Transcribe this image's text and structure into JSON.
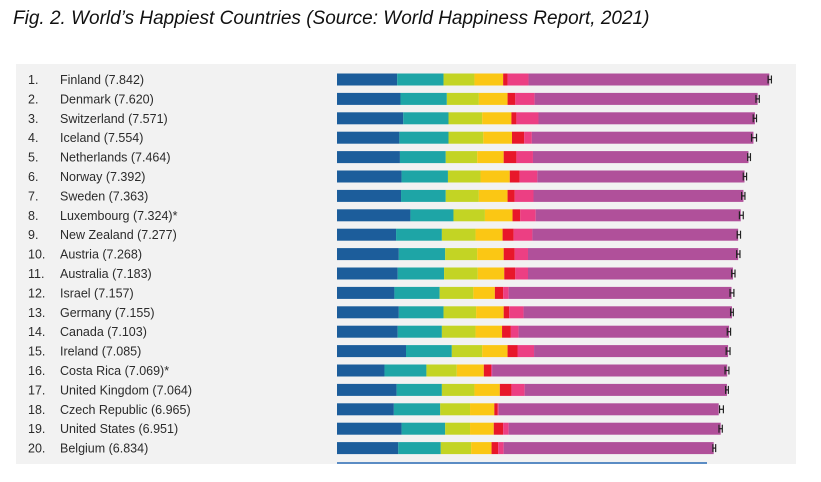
{
  "caption": "Fig. 2. World’s Happiest Countries (Source: World Happiness Report, 2021)",
  "chart_data": {
    "type": "bar",
    "stacked": true,
    "orientation": "horizontal",
    "title": "Fig. 2. World’s Happiest Countries (Source: World Happiness Report, 2021)",
    "source_note": "Source: World Happiness Report, 2021",
    "rows": [
      {
        "rank": "1.",
        "label": "Finland (7.842)",
        "score": 7.842,
        "ci_low": 7.81,
        "ci_high": 7.87
      },
      {
        "rank": "2.",
        "label": "Denmark (7.620)",
        "score": 7.62,
        "ci_low": 7.59,
        "ci_high": 7.65
      },
      {
        "rank": "3.",
        "label": "Switzerland (7.571)",
        "score": 7.571,
        "ci_low": 7.54,
        "ci_high": 7.6
      },
      {
        "rank": "4.",
        "label": "Iceland (7.554)",
        "score": 7.554,
        "ci_low": 7.51,
        "ci_high": 7.6
      },
      {
        "rank": "5.",
        "label": "Netherlands (7.464)",
        "score": 7.464,
        "ci_low": 7.44,
        "ci_high": 7.49
      },
      {
        "rank": "6.",
        "label": "Norway (7.392)",
        "score": 7.392,
        "ci_low": 7.36,
        "ci_high": 7.42
      },
      {
        "rank": "7.",
        "label": "Sweden (7.363)",
        "score": 7.363,
        "ci_low": 7.33,
        "ci_high": 7.39
      },
      {
        "rank": "8.",
        "label": "Luxembourg (7.324)*",
        "score": 7.324,
        "ci_low": 7.29,
        "ci_high": 7.36
      },
      {
        "rank": "9.",
        "label": "New Zealand (7.277)",
        "score": 7.277,
        "ci_low": 7.25,
        "ci_high": 7.31
      },
      {
        "rank": "10.",
        "label": "Austria (7.268)",
        "score": 7.268,
        "ci_low": 7.24,
        "ci_high": 7.3
      },
      {
        "rank": "11.",
        "label": "Australia (7.183)",
        "score": 7.183,
        "ci_low": 7.15,
        "ci_high": 7.21
      },
      {
        "rank": "12.",
        "label": "Israel (7.157)",
        "score": 7.157,
        "ci_low": 7.12,
        "ci_high": 7.19
      },
      {
        "rank": "13.",
        "label": "Germany (7.155)",
        "score": 7.155,
        "ci_low": 7.13,
        "ci_high": 7.18
      },
      {
        "rank": "14.",
        "label": "Canada (7.103)",
        "score": 7.103,
        "ci_low": 7.07,
        "ci_high": 7.13
      },
      {
        "rank": "15.",
        "label": "Ireland (7.085)",
        "score": 7.085,
        "ci_low": 7.05,
        "ci_high": 7.12
      },
      {
        "rank": "16.",
        "label": "Costa Rica (7.069)*",
        "score": 7.069,
        "ci_low": 7.03,
        "ci_high": 7.1
      },
      {
        "rank": "17.",
        "label": "United Kingdom (7.064)",
        "score": 7.064,
        "ci_low": 7.04,
        "ci_high": 7.09
      },
      {
        "rank": "18.",
        "label": "Czech Republic (6.965)",
        "score": 6.965,
        "ci_low": 6.93,
        "ci_high": 7.0
      },
      {
        "rank": "19.",
        "label": "United States (6.951)",
        "score": 6.951,
        "ci_low": 6.92,
        "ci_high": 6.98
      },
      {
        "rank": "20.",
        "label": "Belgium (6.834)",
        "score": 6.834,
        "ci_low": 6.81,
        "ci_high": 6.86
      }
    ],
    "segment_colors": [
      "#1c5d9b",
      "#1ea5a6",
      "#c3d424",
      "#fbc714",
      "#e8172a",
      "#ec3f83",
      "#b0509a"
    ],
    "segments": [
      [
        1.09,
        0.84,
        0.56,
        0.52,
        0.08,
        0.38,
        4.362
      ],
      [
        1.15,
        0.84,
        0.58,
        0.52,
        0.14,
        0.35,
        4.04
      ],
      [
        1.2,
        0.82,
        0.61,
        0.53,
        0.09,
        0.4,
        3.921
      ],
      [
        1.13,
        0.89,
        0.63,
        0.52,
        0.22,
        0.14,
        4.014
      ],
      [
        1.14,
        0.83,
        0.57,
        0.48,
        0.23,
        0.3,
        3.904
      ],
      [
        1.17,
        0.84,
        0.59,
        0.53,
        0.18,
        0.32,
        3.752
      ],
      [
        1.16,
        0.81,
        0.6,
        0.52,
        0.13,
        0.34,
        3.803
      ],
      [
        1.33,
        0.78,
        0.57,
        0.5,
        0.14,
        0.28,
        3.714
      ],
      [
        1.07,
        0.83,
        0.61,
        0.49,
        0.2,
        0.34,
        3.727
      ],
      [
        1.12,
        0.84,
        0.58,
        0.48,
        0.2,
        0.24,
        3.808
      ],
      [
        1.1,
        0.84,
        0.61,
        0.48,
        0.2,
        0.23,
        3.713
      ],
      [
        1.04,
        0.82,
        0.61,
        0.39,
        0.15,
        0.1,
        4.037
      ],
      [
        1.12,
        0.81,
        0.59,
        0.5,
        0.1,
        0.26,
        3.775
      ],
      [
        1.1,
        0.8,
        0.61,
        0.48,
        0.16,
        0.14,
        3.813
      ],
      [
        1.25,
        0.83,
        0.55,
        0.46,
        0.18,
        0.3,
        3.515
      ],
      [
        0.86,
        0.76,
        0.55,
        0.49,
        0.13,
        0.02,
        4.259
      ],
      [
        1.08,
        0.82,
        0.59,
        0.46,
        0.21,
        0.24,
        3.664
      ],
      [
        1.03,
        0.84,
        0.54,
        0.44,
        0.06,
        0.02,
        3.985
      ],
      [
        1.17,
        0.79,
        0.45,
        0.43,
        0.17,
        0.1,
        3.841
      ],
      [
        1.11,
        0.77,
        0.55,
        0.37,
        0.12,
        0.1,
        3.804
      ]
    ],
    "xlim": [
      0,
      8.1
    ],
    "grid": false,
    "legend": "none"
  }
}
